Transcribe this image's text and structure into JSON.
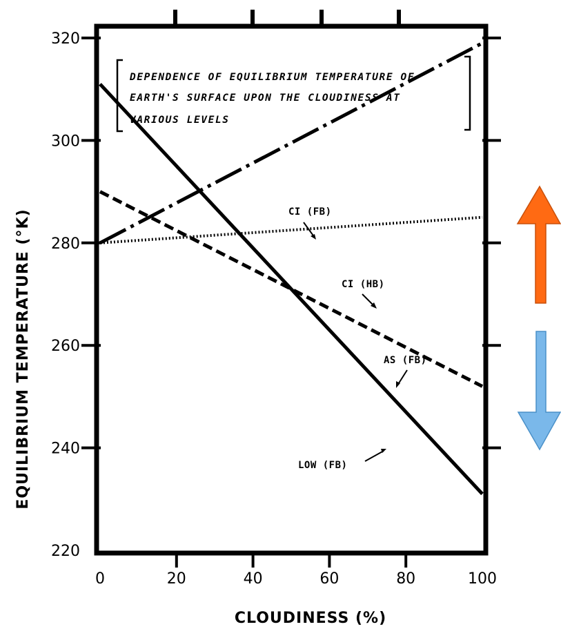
{
  "chart_data": {
    "type": "line",
    "title_lines": [
      "DEPENDENCE OF EQUILIBRIUM TEMPERATURE OF",
      "EARTH'S SURFACE UPON THE CLOUDINESS AT",
      "VARIOUS LEVELS"
    ],
    "xlabel": "CLOUDINESS (%)",
    "ylabel": "EQUILIBRIUM TEMPERATURE (°K)",
    "xlim": [
      0,
      100
    ],
    "ylim": [
      220,
      320
    ],
    "x_ticks": [
      0,
      20,
      40,
      60,
      80,
      100
    ],
    "y_ticks": [
      220,
      240,
      260,
      280,
      300,
      320
    ],
    "x_tick_labels": [
      "0",
      "20",
      "40",
      "60",
      "80",
      "100"
    ],
    "y_tick_labels": [
      "220",
      "240",
      "260",
      "280",
      "300",
      "320"
    ],
    "grid": false,
    "series": [
      {
        "name": "CI (FB)",
        "style": "dash-dot",
        "x": [
          0,
          100
        ],
        "y": [
          280,
          319
        ]
      },
      {
        "name": "CI (HB)",
        "style": "dotted",
        "x": [
          0,
          100
        ],
        "y": [
          280,
          285
        ]
      },
      {
        "name": "AS (FB)",
        "style": "dashed",
        "x": [
          0,
          100
        ],
        "y": [
          290,
          252
        ]
      },
      {
        "name": "LOW (FB)",
        "style": "solid",
        "x": [
          0,
          100
        ],
        "y": [
          311,
          231
        ]
      }
    ],
    "annotations": {
      "up_arrow_color": "#ff6a13",
      "down_arrow_color": "#7ab8ea"
    }
  }
}
